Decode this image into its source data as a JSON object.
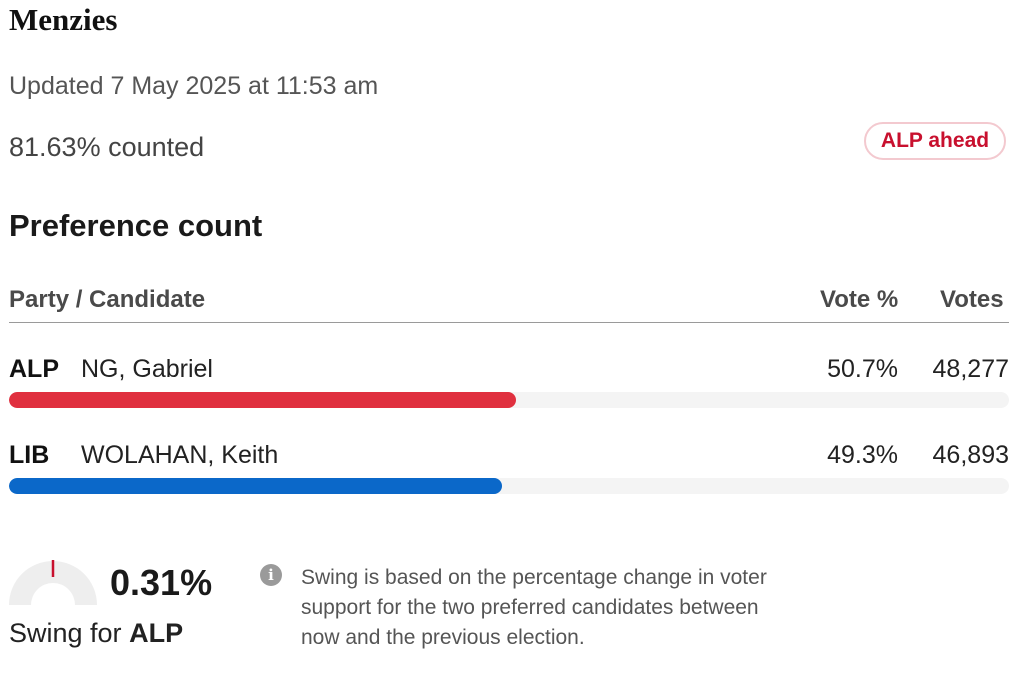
{
  "electorate": {
    "name": "Menzies"
  },
  "status": {
    "updated": "Updated 7 May 2025 at 11:53 am",
    "counted": "81.63% counted",
    "badge": "ALP ahead",
    "badge_color": "#c8102e"
  },
  "preference_count": {
    "title": "Preference count",
    "headers": {
      "party_candidate": "Party / Candidate",
      "vote_pct": "Vote %",
      "votes": "Votes"
    },
    "rows": [
      {
        "party": "ALP",
        "candidate": "NG, Gabriel",
        "vote_pct": "50.7%",
        "votes": "48,277",
        "share": 0.507,
        "color": "#e0303f"
      },
      {
        "party": "LIB",
        "candidate": "WOLAHAN, Keith",
        "vote_pct": "49.3%",
        "votes": "46,893",
        "share": 0.493,
        "color": "#0b68c9"
      }
    ]
  },
  "swing": {
    "value": "0.31%",
    "label_prefix": "Swing for",
    "party": "ALP",
    "info_icon": "info-icon",
    "note": "Swing is based on the percentage change in voter support for the two preferred candidates between now and the previous election."
  }
}
